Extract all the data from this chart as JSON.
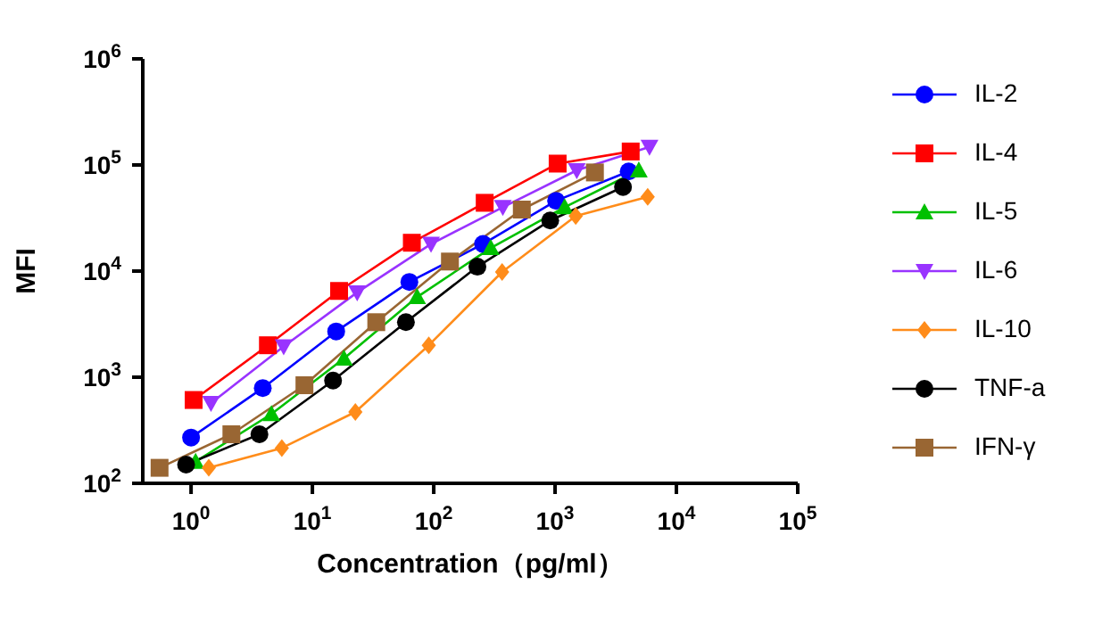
{
  "chart_data": {
    "type": "line",
    "xlabel": "Concentration（pg/ml）",
    "ylabel": "MFI",
    "log": "xy",
    "legend": "right",
    "line_style": "solid",
    "xlim": [
      0.4,
      100000
    ],
    "ylim": [
      100,
      1000000
    ],
    "xticks": [
      {
        "value": 1,
        "label": "10$^{0}$"
      },
      {
        "value": 10,
        "label": "10$^{1}$"
      },
      {
        "value": 100,
        "label": "10$^{2}$"
      },
      {
        "value": 1000,
        "label": "10$^{3}$"
      },
      {
        "value": 10000,
        "label": "10$^{4}$"
      },
      {
        "value": 100000,
        "label": "10$^{5}$"
      }
    ],
    "yticks": [
      {
        "value": 100,
        "label": "10$^{2}$"
      },
      {
        "value": 1000,
        "label": "10$^{3}$"
      },
      {
        "value": 10000,
        "label": "10$^{4}$"
      },
      {
        "value": 100000,
        "label": "10$^{5}$"
      },
      {
        "value": 1000000,
        "label": "10$^{6}$"
      }
    ],
    "series": [
      {
        "name": "IL-2",
        "color": "#0000ff",
        "marker": "circle",
        "x": [
          1,
          3.9,
          15.7,
          63,
          255,
          1020,
          4040
        ],
        "values": [
          270,
          790,
          2700,
          7900,
          18000,
          46000,
          87000
        ]
      },
      {
        "name": "IL-4",
        "color": "#ff0000",
        "marker": "square",
        "x": [
          1.05,
          4.3,
          16.6,
          66,
          263,
          1050,
          4200
        ],
        "values": [
          610,
          2000,
          6500,
          18500,
          44000,
          103000,
          134000
        ]
      },
      {
        "name": "IL-5",
        "color": "#00c000",
        "marker": "triangle",
        "x": [
          1.09,
          4.6,
          18.2,
          73,
          295,
          1200,
          4900
        ],
        "values": [
          160,
          450,
          1500,
          5700,
          16500,
          40000,
          89000
        ]
      },
      {
        "name": "IL-6",
        "color": "#9933ff",
        "marker": "triangle-down",
        "x": [
          1.46,
          5.8,
          23.4,
          95,
          371,
          1510,
          6000
        ],
        "values": [
          570,
          1950,
          6300,
          18000,
          40000,
          89000,
          148000
        ]
      },
      {
        "name": "IL-10",
        "color": "#ff8c1a",
        "marker": "diamond",
        "x": [
          1.4,
          5.6,
          22.6,
          91,
          366,
          1480,
          5800
        ],
        "values": [
          140,
          215,
          470,
          2000,
          9800,
          33000,
          50000
        ]
      },
      {
        "name": "TNF-a",
        "color": "#000000",
        "marker": "circle",
        "x": [
          0.91,
          3.66,
          14.8,
          59,
          229,
          912,
          3630
        ],
        "values": [
          150,
          290,
          930,
          3300,
          11000,
          30000,
          62000
        ]
      },
      {
        "name": "IFN-γ",
        "color": "#996633",
        "marker": "square",
        "x": [
          0.55,
          2.15,
          8.6,
          33.6,
          136,
          532,
          2130
        ],
        "values": [
          140,
          290,
          840,
          3300,
          12300,
          38000,
          85000
        ]
      }
    ]
  }
}
